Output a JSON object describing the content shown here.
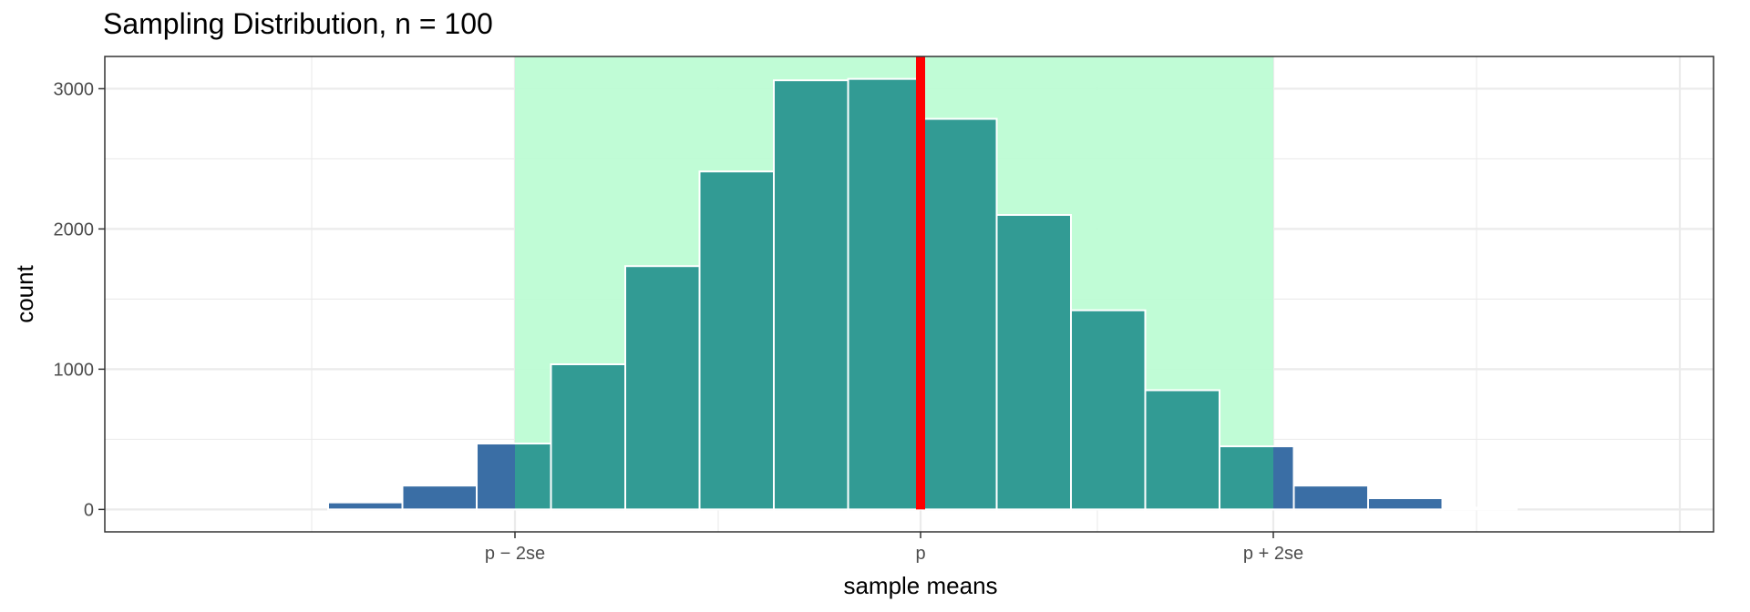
{
  "chart_data": {
    "type": "bar",
    "title": "Sampling Distribution, n = 100",
    "xlabel": "sample means",
    "ylabel": "count",
    "x_tick_labels": [
      "p − 2se",
      "p",
      "p + 2se"
    ],
    "y_ticks": [
      0,
      1000,
      2000,
      3000
    ],
    "ylim": [
      -160,
      3230
    ],
    "grid": true,
    "bins": [
      {
        "count": 50,
        "in_interval": false
      },
      {
        "count": 170,
        "in_interval": false
      },
      {
        "count": 470,
        "in_interval": "partial"
      },
      {
        "count": 1035,
        "in_interval": true
      },
      {
        "count": 1735,
        "in_interval": true
      },
      {
        "count": 2410,
        "in_interval": true
      },
      {
        "count": 3060,
        "in_interval": true
      },
      {
        "count": 3070,
        "in_interval": true
      },
      {
        "count": 2785,
        "in_interval": true
      },
      {
        "count": 2100,
        "in_interval": true
      },
      {
        "count": 1420,
        "in_interval": true
      },
      {
        "count": 850,
        "in_interval": true
      },
      {
        "count": 450,
        "in_interval": "partial"
      },
      {
        "count": 170,
        "in_interval": false
      },
      {
        "count": 80,
        "in_interval": false
      },
      {
        "count": 12,
        "in_interval": false
      }
    ],
    "interval_region": "p − 2se to p + 2se",
    "reference_line": "p",
    "colors": {
      "bar_outside": "#3a6ea5",
      "bar_inside": "#329b94",
      "interval_shade": "#bdfcd4",
      "reference_line": "#ff0000",
      "bar_outline": "#ffffff"
    }
  }
}
